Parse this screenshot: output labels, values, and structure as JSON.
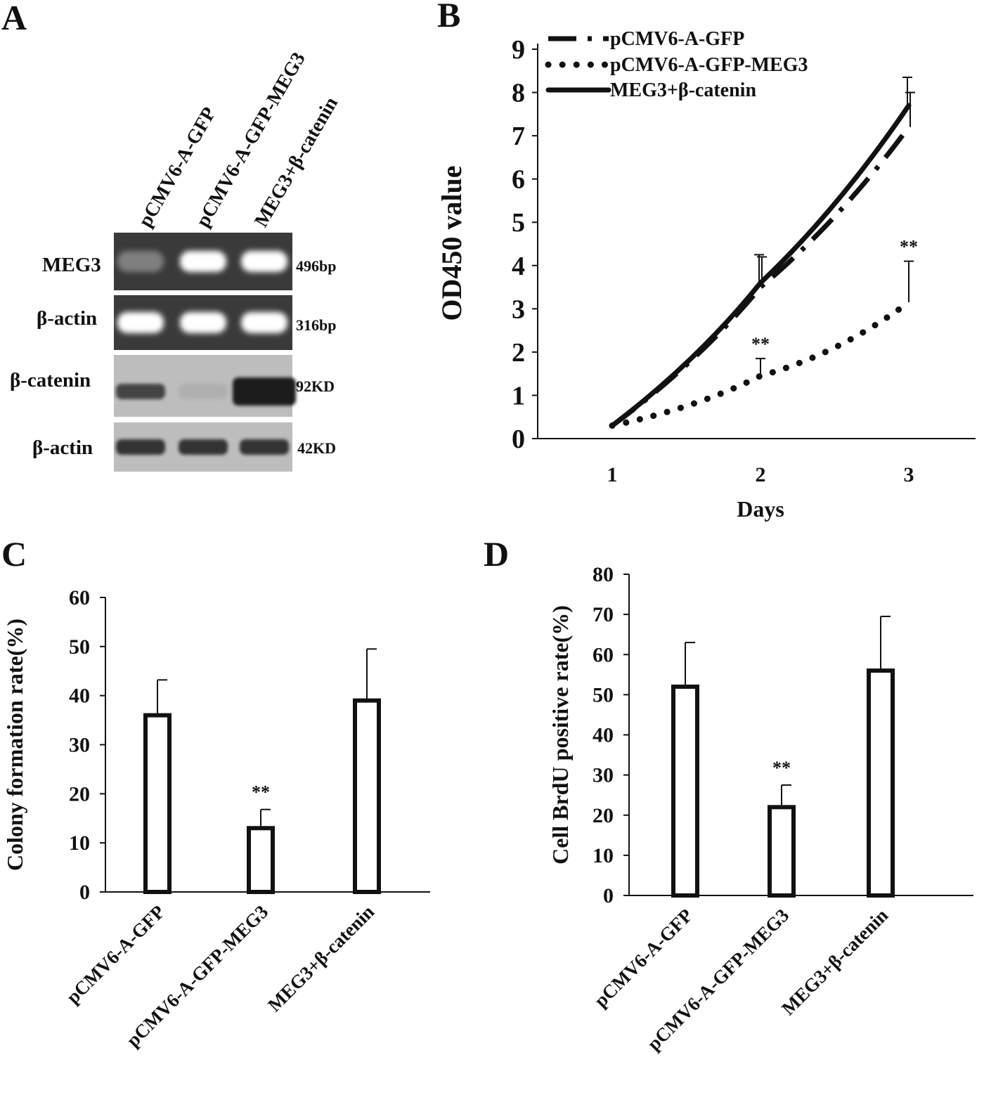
{
  "panels": {
    "a": "A",
    "b": "B",
    "c": "C",
    "d": "D"
  },
  "gel": {
    "lanes": [
      "pCMV6-A-GFP",
      "pCMV6-A-GFP-MEG3",
      "MEG3+β-catenin"
    ],
    "rows": [
      {
        "label": "MEG3",
        "size": "496bp",
        "intensity": [
          0.35,
          1.0,
          1.0
        ],
        "kind": "dna"
      },
      {
        "label": "β-actin",
        "size": "316bp",
        "intensity": [
          1.0,
          1.0,
          1.0
        ],
        "kind": "dna"
      },
      {
        "label": "β-catenin",
        "size": "92KD",
        "intensity": [
          0.75,
          0.08,
          1.0
        ],
        "kind": "protein"
      },
      {
        "label": "β-actin",
        "size": "42KD",
        "intensity": [
          0.85,
          0.85,
          0.85
        ],
        "kind": "protein"
      }
    ]
  },
  "colors": {
    "ink": "#111111",
    "gel_bg": "#3a3a3a",
    "blot_bg": "#bdbdbd"
  },
  "chart_data": [
    {
      "id": "B",
      "type": "line",
      "xlabel": "Days",
      "ylabel": "OD450 value",
      "x": [
        1,
        2,
        3
      ],
      "xticks": [
        "1",
        "2",
        "3"
      ],
      "yticks": [
        "0",
        "1",
        "2",
        "3",
        "4",
        "5",
        "6",
        "7",
        "8",
        "9"
      ],
      "ylim": [
        0,
        9
      ],
      "series": [
        {
          "name": "pCMV6-A-GFP",
          "style": "dash-dot",
          "values": [
            0.3,
            3.5,
            7.2
          ],
          "error": [
            0,
            0.7,
            0.8
          ]
        },
        {
          "name": "pCMV6-A-GFP-MEG3",
          "style": "dotted",
          "values": [
            0.3,
            1.45,
            3.15
          ],
          "error": [
            0,
            0.4,
            0.95
          ]
        },
        {
          "name": "MEG3+β-catenin",
          "style": "solid",
          "values": [
            0.3,
            3.6,
            7.7
          ],
          "error": [
            0,
            0.65,
            0.65
          ]
        }
      ],
      "annotations": [
        {
          "text": "**",
          "x": 2,
          "series": "pCMV6-A-GFP-MEG3"
        },
        {
          "text": "**",
          "x": 3,
          "series": "pCMV6-A-GFP-MEG3"
        }
      ]
    },
    {
      "id": "C",
      "type": "bar",
      "ylabel": "Colony formation rate(%)",
      "categories": [
        "pCMV6-A-GFP",
        "pCMV6-A-GFP-MEG3",
        "MEG3+β-catenin"
      ],
      "values": [
        36,
        13,
        39
      ],
      "errors": [
        7.2,
        3.8,
        10.5
      ],
      "ylim": [
        0,
        60
      ],
      "yticks": [
        "0",
        "10",
        "20",
        "30",
        "40",
        "50",
        "60"
      ],
      "annotations": [
        {
          "text": "**",
          "category": "pCMV6-A-GFP-MEG3"
        }
      ]
    },
    {
      "id": "D",
      "type": "bar",
      "ylabel": "Cell BrdU positive rate(%)",
      "categories": [
        "pCMV6-A-GFP",
        "pCMV6-A-GFP-MEG3",
        "MEG3+β-catenin"
      ],
      "values": [
        52,
        22,
        56
      ],
      "errors": [
        11,
        5.5,
        13.5
      ],
      "ylim": [
        0,
        80
      ],
      "yticks": [
        "0",
        "10",
        "20",
        "30",
        "40",
        "50",
        "60",
        "70",
        "80"
      ],
      "annotations": [
        {
          "text": "**",
          "category": "pCMV6-A-GFP-MEG3"
        }
      ]
    }
  ]
}
